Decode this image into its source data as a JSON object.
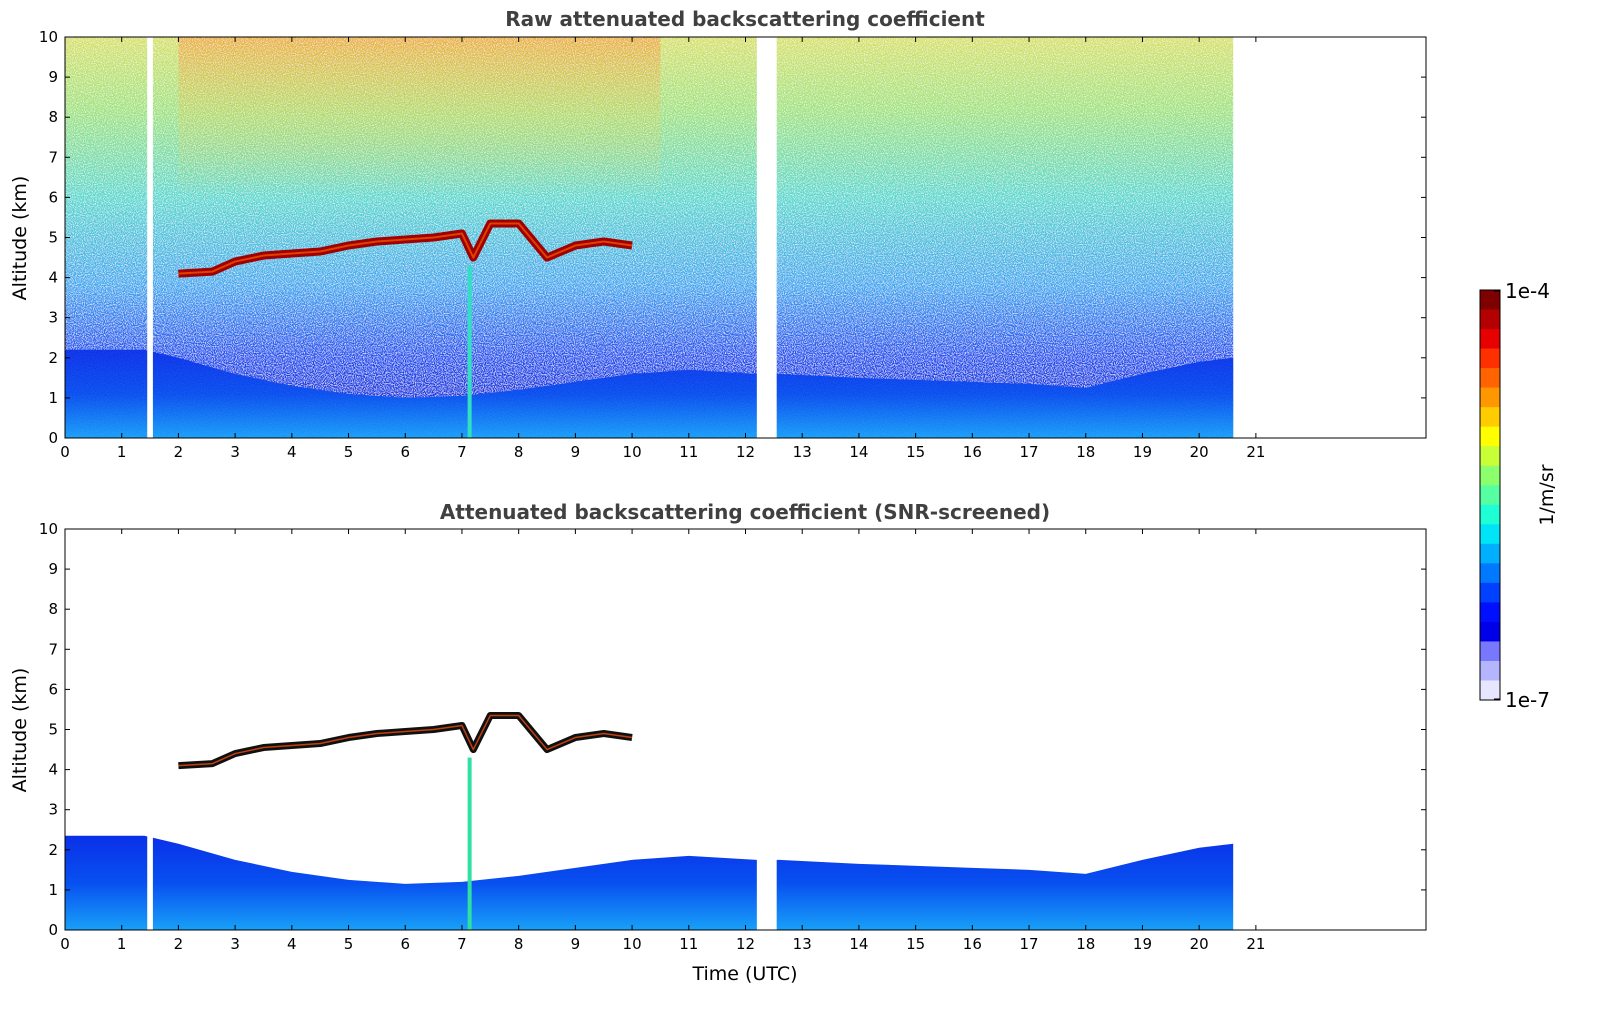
{
  "chart_data": [
    {
      "type": "heatmap",
      "title": "Raw attenuated backscattering coefficient",
      "xlabel": "",
      "ylabel": "Altitude (km)",
      "xlim": [
        0,
        24
      ],
      "ylim": [
        0,
        10
      ],
      "x_ticks": [
        "0",
        "1",
        "2",
        "3",
        "4",
        "5",
        "6",
        "7",
        "8",
        "9",
        "10",
        "11",
        "12",
        "13",
        "14",
        "15",
        "16",
        "17",
        "18",
        "19",
        "20",
        "21"
      ],
      "y_ticks": [
        "0",
        "1",
        "2",
        "3",
        "4",
        "5",
        "6",
        "7",
        "8",
        "9",
        "10"
      ],
      "data_extent_hours": [
        0,
        20.6
      ],
      "data_gaps_hours": [
        [
          1.45,
          1.55
        ],
        [
          12.2,
          12.55
        ]
      ],
      "cloud_layer": {
        "time_hours": [
          2.0,
          2.6,
          3.0,
          3.5,
          4.0,
          4.5,
          5.0,
          5.5,
          6.0,
          6.5,
          7.0,
          7.2,
          7.5,
          8.0,
          8.5,
          9.0,
          9.5,
          10.0
        ],
        "altitude_km": [
          4.1,
          4.15,
          4.4,
          4.55,
          4.6,
          4.65,
          4.8,
          4.9,
          4.95,
          5.0,
          5.1,
          4.5,
          5.35,
          5.35,
          4.5,
          4.8,
          4.9,
          4.8
        ]
      },
      "boundary_layer_top_km": {
        "time_hours": [
          0,
          1.4,
          2,
          3,
          4,
          5,
          6,
          7,
          8,
          9,
          10,
          11,
          12.2,
          12.6,
          14,
          16,
          17,
          18,
          19,
          20,
          20.6
        ],
        "altitude_km": [
          2.2,
          2.2,
          2.0,
          1.6,
          1.3,
          1.1,
          1.0,
          1.05,
          1.2,
          1.4,
          1.6,
          1.7,
          1.6,
          1.6,
          1.5,
          1.4,
          1.35,
          1.25,
          1.6,
          1.9,
          2.0
        ]
      }
    },
    {
      "type": "heatmap",
      "title": "Attenuated backscattering coefficient (SNR-screened)",
      "xlabel": "Time (UTC)",
      "ylabel": "Altitude (km)",
      "xlim": [
        0,
        24
      ],
      "ylim": [
        0,
        10
      ],
      "x_ticks": [
        "0",
        "1",
        "2",
        "3",
        "4",
        "5",
        "6",
        "7",
        "8",
        "9",
        "10",
        "11",
        "12",
        "13",
        "14",
        "15",
        "16",
        "17",
        "18",
        "19",
        "20",
        "21"
      ],
      "y_ticks": [
        "0",
        "1",
        "2",
        "3",
        "4",
        "5",
        "6",
        "7",
        "8",
        "9",
        "10"
      ],
      "data_extent_hours": [
        0,
        20.6
      ],
      "data_gaps_hours": [
        [
          1.45,
          1.55
        ],
        [
          12.2,
          12.55
        ]
      ]
    }
  ],
  "colorbar": {
    "label": "1/m/sr",
    "max_label": "1e-4",
    "min_label": "1e-7",
    "colors": [
      "#7f0000",
      "#b40000",
      "#e60000",
      "#ff3000",
      "#ff6400",
      "#ff9800",
      "#ffcc00",
      "#ffff00",
      "#c8ff37",
      "#8cff6c",
      "#55ffa2",
      "#1fffd6",
      "#00e4f8",
      "#00b0ff",
      "#0078ff",
      "#0040ff",
      "#0010ff",
      "#0000e8",
      "#7878ff",
      "#b4b4ff",
      "#e6e6ff"
    ]
  }
}
